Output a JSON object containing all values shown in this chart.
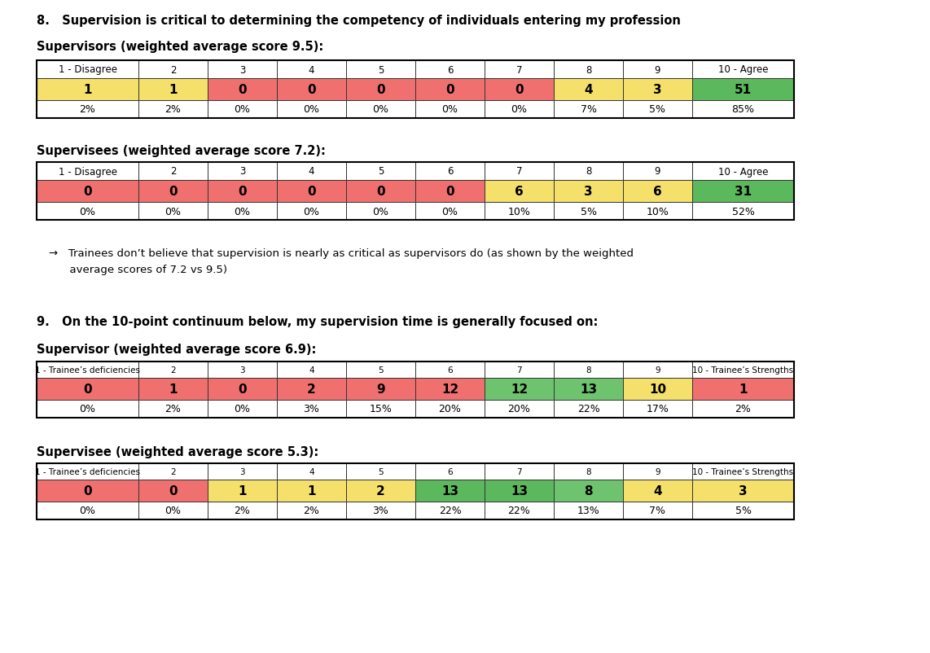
{
  "q8_title": "8.   Supervision is critical to determining the competency of individuals entering my profession",
  "q8_supervisors_label": "Supervisors (weighted average score 9.5):",
  "q8_supervisees_label": "Supervisees (weighted average score 7.2):",
  "q9_title": "9.   On the 10-point continuum below, my supervision time is generally focused on:",
  "q9_supervisor_label": "Supervisor (weighted average score 6.9):",
  "q9_supervisee_label": "Supervisee (weighted average score 5.3):",
  "bullet_line1": "→   Trainees don’t believe that supervision is nearly as critical as supervisors do (as shown by the weighted",
  "bullet_line2": "      average scores of 7.2 vs 9.5)",
  "col_headers_agree": [
    "1 - Disagree",
    "2",
    "3",
    "4",
    "5",
    "6",
    "7",
    "8",
    "9",
    "10 - Agree"
  ],
  "col_headers_deficiencies": [
    "1 - Trainee’s deficiencies",
    "2",
    "3",
    "4",
    "5",
    "6",
    "7",
    "8",
    "9",
    "10 - Trainee’s Strengths"
  ],
  "q8_sup_values": [
    "1",
    "1",
    "0",
    "0",
    "0",
    "0",
    "0",
    "4",
    "3",
    "51"
  ],
  "q8_sup_pcts": [
    "2%",
    "2%",
    "0%",
    "0%",
    "0%",
    "0%",
    "0%",
    "7%",
    "5%",
    "85%"
  ],
  "q8_see_values": [
    "0",
    "0",
    "0",
    "0",
    "0",
    "0",
    "6",
    "3",
    "6",
    "31"
  ],
  "q8_see_pcts": [
    "0%",
    "0%",
    "0%",
    "0%",
    "0%",
    "0%",
    "10%",
    "5%",
    "10%",
    "52%"
  ],
  "q9_sup_values": [
    "0",
    "1",
    "0",
    "2",
    "9",
    "12",
    "12",
    "13",
    "10",
    "1"
  ],
  "q9_sup_pcts": [
    "0%",
    "2%",
    "0%",
    "3%",
    "15%",
    "20%",
    "20%",
    "22%",
    "17%",
    "2%"
  ],
  "q9_see_values": [
    "0",
    "0",
    "1",
    "1",
    "2",
    "13",
    "13",
    "8",
    "4",
    "3"
  ],
  "q9_see_pcts": [
    "0%",
    "0%",
    "2%",
    "2%",
    "3%",
    "22%",
    "22%",
    "13%",
    "7%",
    "5%"
  ],
  "q8_sup_colors": [
    "#F5E06B",
    "#F5E06B",
    "#F07070",
    "#F07070",
    "#F07070",
    "#F07070",
    "#F07070",
    "#F5E06B",
    "#F5E06B",
    "#5CB85C"
  ],
  "q8_see_colors": [
    "#F07070",
    "#F07070",
    "#F07070",
    "#F07070",
    "#F07070",
    "#F07070",
    "#F5E06B",
    "#F5E06B",
    "#F5E06B",
    "#5CB85C"
  ],
  "q9_sup_colors": [
    "#F07070",
    "#F07070",
    "#F07070",
    "#F07070",
    "#F07070",
    "#F07070",
    "#6EC46E",
    "#6EC46E",
    "#F5E06B",
    "#F07070"
  ],
  "q9_see_colors": [
    "#F07070",
    "#F07070",
    "#F5E06B",
    "#F5E06B",
    "#F5E06B",
    "#5CB85C",
    "#5CB85C",
    "#6EC46E",
    "#F5E06B",
    "#F5E06B"
  ],
  "bg_color": "#FFFFFF"
}
